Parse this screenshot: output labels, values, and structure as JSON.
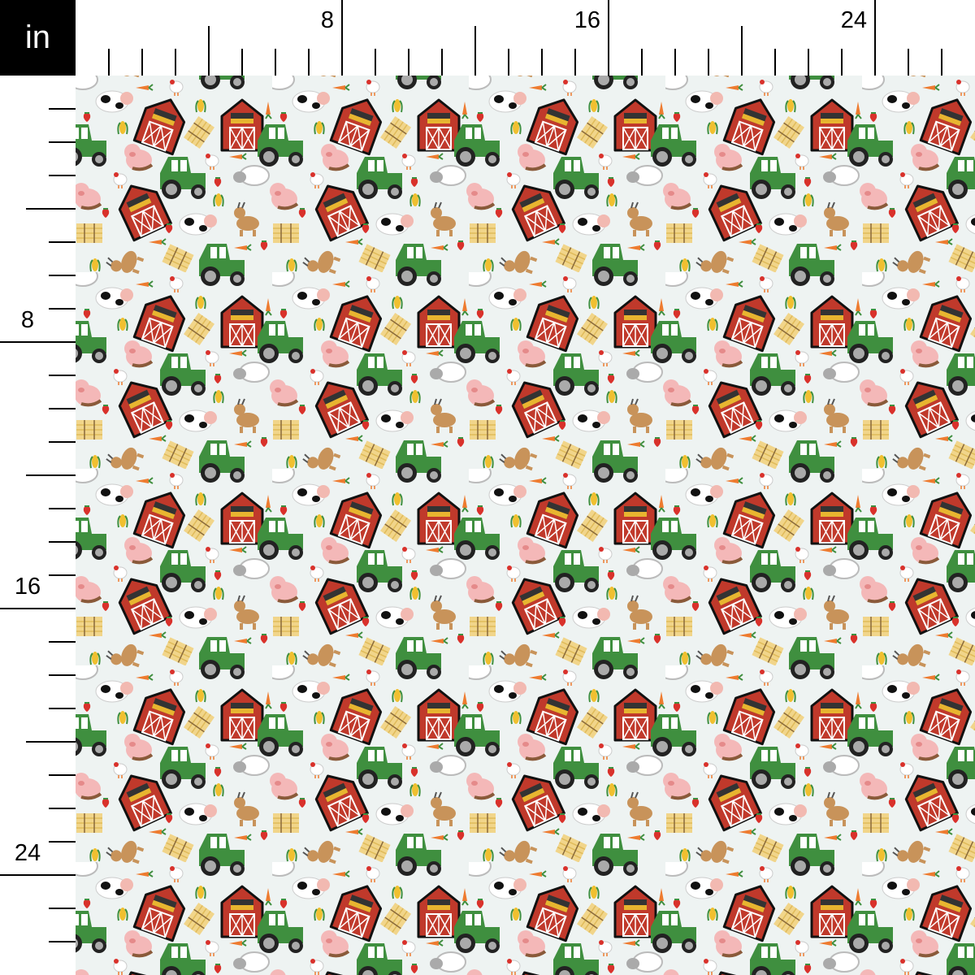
{
  "ruler": {
    "unit": "in",
    "top_labels": [
      "8",
      "16",
      "24"
    ],
    "left_labels": [
      "8",
      "16",
      "24"
    ],
    "major_every_inches": 8,
    "mid_every_inches": 4
  },
  "fabric": {
    "pattern": "farm animals, red barns, green tractors, hay bales, corn, carrots",
    "background_color": "#eef3f2",
    "colors": {
      "barn": "#c0392b",
      "tractor": "#3f8f3f",
      "hay": "#f1d58a",
      "pig": "#f4b8b8",
      "goat": "#c8935a",
      "carrot": "#ee7b2f"
    }
  }
}
